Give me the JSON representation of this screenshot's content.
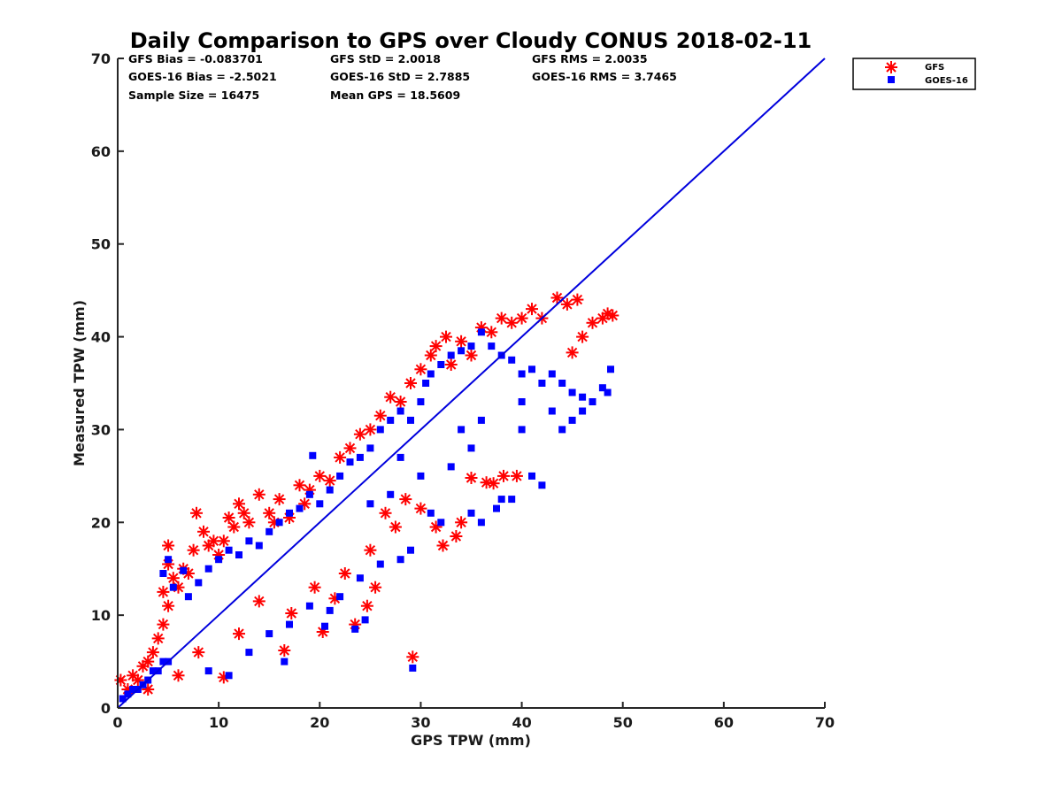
{
  "chart_data": {
    "type": "scatter",
    "title": "Daily Comparison to GPS over Cloudy CONUS 2018-02-11",
    "xlabel": "GPS TPW (mm)",
    "ylabel": "Measured TPW (mm)",
    "xlim": [
      0,
      70
    ],
    "ylim": [
      0,
      70
    ],
    "xticks": [
      "0",
      "10",
      "20",
      "30",
      "40",
      "50",
      "60",
      "70"
    ],
    "yticks": [
      "0",
      "10",
      "20",
      "30",
      "40",
      "50",
      "60",
      "70"
    ],
    "grid": false,
    "legend_position": "outside top-right",
    "stats": [
      "GFS Bias = -0.083701",
      "GFS StD = 2.0018",
      "GFS RMS = 2.0035",
      "GOES-16 Bias = -2.5021",
      "GOES-16 StD = 2.7885",
      "GOES-16 RMS = 3.7465",
      "Sample Size = 16475",
      "Mean GPS = 18.5609"
    ],
    "series": [
      {
        "name": "GFS",
        "marker": "asterisk",
        "color": "#ff0000",
        "points": [
          [
            0.3,
            3.0
          ],
          [
            1,
            2
          ],
          [
            1.5,
            3.5
          ],
          [
            2,
            3
          ],
          [
            2.5,
            4.5
          ],
          [
            3,
            5
          ],
          [
            3.5,
            6
          ],
          [
            4,
            7.5
          ],
          [
            4.5,
            9
          ],
          [
            5,
            11
          ],
          [
            4.5,
            12.5
          ],
          [
            5,
            15.5
          ],
          [
            5,
            17.5
          ],
          [
            5.5,
            14
          ],
          [
            6,
            13
          ],
          [
            6.5,
            15
          ],
          [
            7,
            14.5
          ],
          [
            7.5,
            17
          ],
          [
            7.8,
            21
          ],
          [
            8.5,
            19
          ],
          [
            9,
            17.5
          ],
          [
            9.5,
            18
          ],
          [
            10,
            16.5
          ],
          [
            10.5,
            18
          ],
          [
            11,
            20.5
          ],
          [
            11.5,
            19.5
          ],
          [
            12,
            22
          ],
          [
            12.5,
            21
          ],
          [
            13,
            20
          ],
          [
            14,
            23
          ],
          [
            15,
            21
          ],
          [
            16,
            22.5
          ],
          [
            15.5,
            20
          ],
          [
            17,
            20.5
          ],
          [
            18,
            24
          ],
          [
            18.5,
            22
          ],
          [
            19,
            23.5
          ],
          [
            20,
            25
          ],
          [
            21,
            24.5
          ],
          [
            22,
            27
          ],
          [
            23,
            28
          ],
          [
            24,
            29.5
          ],
          [
            25,
            30
          ],
          [
            26,
            31.5
          ],
          [
            27,
            33.5
          ],
          [
            28,
            33
          ],
          [
            29,
            35
          ],
          [
            30,
            36.5
          ],
          [
            31,
            38
          ],
          [
            31.5,
            39
          ],
          [
            32.5,
            40
          ],
          [
            33,
            37
          ],
          [
            34,
            39.5
          ],
          [
            35,
            38
          ],
          [
            36,
            41
          ],
          [
            37,
            40.5
          ],
          [
            38,
            42
          ],
          [
            39,
            41.5
          ],
          [
            40,
            42
          ],
          [
            41,
            43
          ],
          [
            42,
            42
          ],
          [
            43.5,
            44.2
          ],
          [
            44.5,
            43.5
          ],
          [
            45.5,
            44
          ],
          [
            45,
            38.3
          ],
          [
            46,
            40
          ],
          [
            47,
            41.5
          ],
          [
            48,
            42
          ],
          [
            48.5,
            42.5
          ],
          [
            49,
            42.3
          ],
          [
            29.2,
            5.5
          ],
          [
            24.7,
            11
          ],
          [
            23.5,
            9
          ],
          [
            20.3,
            8.2
          ],
          [
            21.5,
            11.8
          ],
          [
            16.5,
            6.2
          ],
          [
            10.5,
            3.3
          ],
          [
            17.2,
            10.2
          ],
          [
            19.5,
            13
          ],
          [
            25.5,
            13
          ],
          [
            27.5,
            19.5
          ],
          [
            31.5,
            19.5
          ],
          [
            33.5,
            18.5
          ],
          [
            32.2,
            17.5
          ],
          [
            35,
            24.8
          ],
          [
            36.5,
            24.3
          ],
          [
            37.2,
            24.2
          ],
          [
            38.2,
            25
          ],
          [
            39.5,
            25
          ],
          [
            34,
            20
          ],
          [
            26.5,
            21
          ],
          [
            28.5,
            22.5
          ],
          [
            30,
            21.5
          ],
          [
            22.5,
            14.5
          ],
          [
            25,
            17
          ],
          [
            14,
            11.5
          ],
          [
            12,
            8
          ],
          [
            8,
            6
          ],
          [
            6,
            3.5
          ],
          [
            3,
            2
          ]
        ]
      },
      {
        "name": "GOES-16",
        "marker": "square",
        "color": "#0000ff",
        "points": [
          [
            0.5,
            1
          ],
          [
            1,
            1.5
          ],
          [
            1.5,
            2
          ],
          [
            2,
            2
          ],
          [
            2.5,
            2.5
          ],
          [
            3,
            3
          ],
          [
            3.5,
            4
          ],
          [
            4,
            4
          ],
          [
            4.5,
            5
          ],
          [
            5,
            5
          ],
          [
            4.5,
            14.5
          ],
          [
            5,
            16
          ],
          [
            5.5,
            13
          ],
          [
            6.5,
            14.8
          ],
          [
            7,
            12
          ],
          [
            8,
            13.5
          ],
          [
            9,
            15
          ],
          [
            10,
            16
          ],
          [
            11,
            17
          ],
          [
            12,
            16.5
          ],
          [
            13,
            18
          ],
          [
            14,
            17.5
          ],
          [
            15,
            19
          ],
          [
            16,
            20
          ],
          [
            17,
            21
          ],
          [
            18,
            21.5
          ],
          [
            19,
            23
          ],
          [
            19.3,
            27.2
          ],
          [
            20,
            22
          ],
          [
            21,
            23.5
          ],
          [
            22,
            25
          ],
          [
            23,
            26.5
          ],
          [
            24,
            27
          ],
          [
            25,
            28
          ],
          [
            26,
            30
          ],
          [
            27,
            31
          ],
          [
            28,
            32
          ],
          [
            29,
            31
          ],
          [
            30,
            33
          ],
          [
            30.5,
            35
          ],
          [
            31,
            36
          ],
          [
            32,
            37
          ],
          [
            33,
            38
          ],
          [
            34,
            38.5
          ],
          [
            35,
            39
          ],
          [
            36,
            40.5
          ],
          [
            37,
            39
          ],
          [
            38,
            38
          ],
          [
            39,
            37.5
          ],
          [
            40,
            36
          ],
          [
            41,
            36.5
          ],
          [
            42,
            35
          ],
          [
            43,
            36
          ],
          [
            44,
            35
          ],
          [
            45,
            34
          ],
          [
            46,
            33.5
          ],
          [
            47,
            33
          ],
          [
            48,
            34.5
          ],
          [
            48.5,
            34
          ],
          [
            48.8,
            36.5
          ],
          [
            41,
            25
          ],
          [
            42,
            24
          ],
          [
            38,
            22.5
          ],
          [
            39,
            22.5
          ],
          [
            37.5,
            21.5
          ],
          [
            36,
            20
          ],
          [
            35,
            21
          ],
          [
            32,
            20
          ],
          [
            31,
            21
          ],
          [
            29,
            17
          ],
          [
            28,
            16
          ],
          [
            26,
            15.5
          ],
          [
            24,
            14
          ],
          [
            22,
            12
          ],
          [
            20.5,
            8.8
          ],
          [
            21,
            10.5
          ],
          [
            23.5,
            8.5
          ],
          [
            24.5,
            9.5
          ],
          [
            16.5,
            5
          ],
          [
            13,
            6
          ],
          [
            11,
            3.5
          ],
          [
            9,
            4
          ],
          [
            29.2,
            4.3
          ],
          [
            15,
            8
          ],
          [
            17,
            9
          ],
          [
            19,
            11
          ],
          [
            27,
            23
          ],
          [
            33,
            26
          ],
          [
            35,
            28
          ],
          [
            40,
            30
          ],
          [
            43,
            32
          ],
          [
            45,
            31
          ],
          [
            46,
            32
          ],
          [
            40,
            33
          ],
          [
            44,
            30
          ],
          [
            36,
            31
          ],
          [
            34,
            30
          ],
          [
            28,
            27
          ],
          [
            25,
            22
          ],
          [
            30,
            25
          ]
        ]
      }
    ],
    "reference_line": {
      "label": "",
      "color": "#0000dd",
      "from": [
        0,
        0
      ],
      "to": [
        70,
        70
      ]
    }
  }
}
